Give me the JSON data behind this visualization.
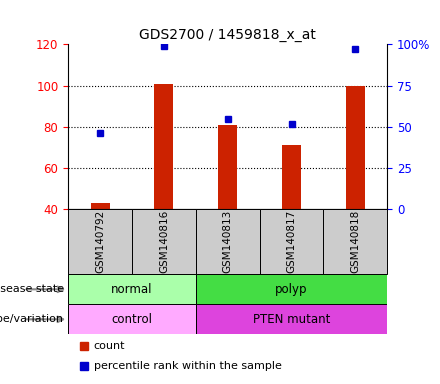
{
  "title": "GDS2700 / 1459818_x_at",
  "samples": [
    "GSM140792",
    "GSM140816",
    "GSM140813",
    "GSM140817",
    "GSM140818"
  ],
  "counts": [
    43,
    101,
    81,
    71,
    100
  ],
  "percentiles": [
    46,
    99,
    55,
    52,
    97
  ],
  "ymin": 40,
  "ymax": 120,
  "yticks_left": [
    40,
    60,
    80,
    100,
    120
  ],
  "yticks_right": [
    0,
    25,
    50,
    75,
    100
  ],
  "bar_color": "#cc2200",
  "point_color": "#0000cc",
  "bar_bottom": 40,
  "grid_lines": [
    60,
    80,
    100
  ],
  "disease_groups": [
    {
      "label": "normal",
      "start": 0,
      "end": 2,
      "color": "#aaffaa"
    },
    {
      "label": "polyp",
      "start": 2,
      "end": 5,
      "color": "#44dd44"
    }
  ],
  "geno_groups": [
    {
      "label": "control",
      "start": 0,
      "end": 2,
      "color": "#ffaaff"
    },
    {
      "label": "PTEN mutant",
      "start": 2,
      "end": 5,
      "color": "#dd44dd"
    }
  ],
  "disease_label": "disease state",
  "geno_label": "genotype/variation",
  "legend_count": "count",
  "legend_pct": "percentile rank within the sample",
  "sample_bg_color": "#cccccc",
  "arrow_color": "#888888"
}
